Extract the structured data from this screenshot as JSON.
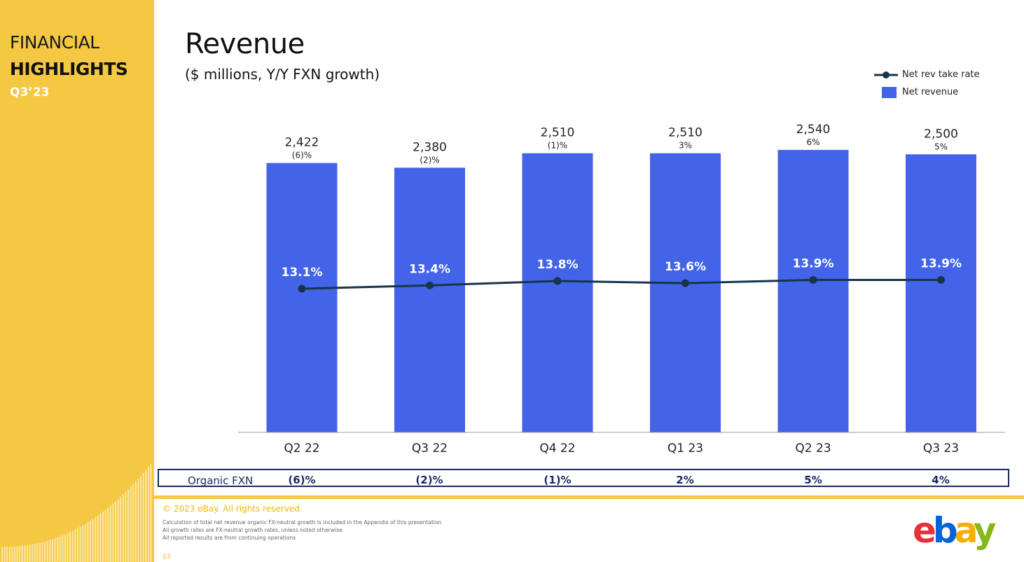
{
  "sidebar": {
    "line1": "FINANCIAL",
    "line2": "HIGHLIGHTS",
    "line3": "Q3’23"
  },
  "header": {
    "title": "Revenue",
    "subtitle": "($ millions, Y/Y FXN growth)"
  },
  "legend": {
    "line_label": "Net rev take rate",
    "bar_label": "Net revenue"
  },
  "colors": {
    "bar": "#4364E8",
    "line": "#17354A",
    "accent": "#F5C843",
    "navy": "#1a2a5e"
  },
  "chart_data": {
    "type": "bar",
    "title": "Revenue",
    "subtitle": "($ millions, Y/Y FXN growth)",
    "categories": [
      "Q2 22",
      "Q3 22",
      "Q4 22",
      "Q1 23",
      "Q2 23",
      "Q3 23"
    ],
    "series": [
      {
        "name": "Net revenue",
        "type": "bar",
        "values": [
          2422,
          2380,
          2510,
          2510,
          2540,
          2500
        ],
        "value_labels": [
          "2,422",
          "2,380",
          "2,510",
          "2,510",
          "2,540",
          "2,500"
        ],
        "growth_labels": [
          "(6)%",
          "(2)%",
          "(1)%",
          "3%",
          "6%",
          "5%"
        ]
      },
      {
        "name": "Net rev take rate",
        "type": "line",
        "values": [
          13.1,
          13.4,
          13.8,
          13.6,
          13.9,
          13.9
        ],
        "value_labels": [
          "13.1%",
          "13.4%",
          "13.8%",
          "13.6%",
          "13.9%",
          "13.9%"
        ]
      }
    ],
    "legend_position": "top-right"
  },
  "organic_fxn": {
    "label": "Organic FXN",
    "values": [
      "(6)%",
      "(2)%",
      "(1)%",
      "2%",
      "5%",
      "4%"
    ]
  },
  "footer": {
    "copyright": "© 2023 eBay. All rights reserved.",
    "notes": [
      "Calculation of total net revenue organic FX-neutral growth is included in the Appendix of this presentation",
      "All growth rates are FX-neutral growth rates, unless noted otherwise",
      "All reported results are from continuing operations"
    ],
    "page_number": "13"
  },
  "logo": {
    "letters": [
      "e",
      "b",
      "a",
      "y"
    ],
    "colors": [
      "#E53238",
      "#0064D2",
      "#F5AF02",
      "#86B817"
    ]
  }
}
